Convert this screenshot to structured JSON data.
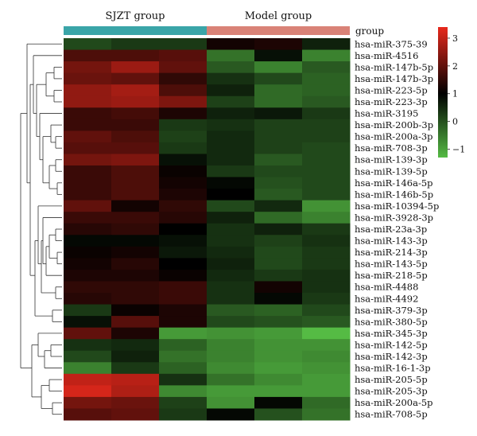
{
  "chart_data": {
    "type": "heatmap",
    "title": "",
    "column_groups": [
      {
        "name": "SJZT group",
        "color": "#3aa5a8",
        "columns": 3
      },
      {
        "name": "Model group",
        "color": "#d98277",
        "columns": 3
      }
    ],
    "group_label": "group",
    "rows": [
      "hsa-miR-375-39",
      "hsa-miR-4516",
      "hsa-miR-147b-5p",
      "hsa-miR-147b-3p",
      "hsa-miR-223-5p",
      "hsa-miR-223-3p",
      "hsa-miR-3195",
      "hsa-miR-200b-3p",
      "hsa-miR-200a-3p",
      "hsa-miR-708-3p",
      "hsa-miR-139-3p",
      "hsa-miR-139-5p",
      "hsa-miR-146a-5p",
      "hsa-miR-146b-5p",
      "hsa-miR-10394-5p",
      "hsa-miR-3928-3p",
      "hsa-miR-23a-3p",
      "hsa-miR-143-3p",
      "hsa-miR-214-3p",
      "hsa-miR-143-5p",
      "hsa-miR-218-5p",
      "hsa-miR-4488",
      "hsa-miR-4492",
      "hsa-miR-379-3p",
      "hsa-miR-380-5p",
      "hsa-miR-345-3p",
      "hsa-miR-142-5p",
      "hsa-miR-142-3p",
      "hsa-miR-16-1-3p",
      "hsa-miR-205-5p",
      "hsa-miR-205-3p",
      "hsa-miR-200a-5p",
      "hsa-miR-708-5p"
    ],
    "values": [
      [
        0.1,
        0.3,
        0.3,
        1.2,
        1.3,
        0.6
      ],
      [
        1.8,
        1.8,
        1.9,
        -0.4,
        0.8,
        -0.6
      ],
      [
        2.2,
        2.6,
        2.0,
        -0.1,
        -0.6,
        -0.1
      ],
      [
        2.1,
        2.0,
        1.5,
        0.4,
        0.1,
        -0.2
      ],
      [
        2.5,
        2.7,
        1.8,
        0.6,
        -0.3,
        -0.2
      ],
      [
        2.5,
        2.6,
        2.3,
        0.2,
        -0.3,
        -0.1
      ],
      [
        1.6,
        1.7,
        1.3,
        0.6,
        0.7,
        0.3
      ],
      [
        1.6,
        1.6,
        0.3,
        0.4,
        0.2,
        0.2
      ],
      [
        2.0,
        1.8,
        0.2,
        0.5,
        0.2,
        0.2
      ],
      [
        1.9,
        1.9,
        0.3,
        0.5,
        0.2,
        0.1
      ],
      [
        2.2,
        2.3,
        0.8,
        0.5,
        -0.1,
        0.1
      ],
      [
        1.6,
        1.8,
        1.1,
        0.3,
        0.1,
        0.1
      ],
      [
        1.6,
        1.8,
        1.2,
        0.9,
        0.0,
        0.1
      ],
      [
        1.6,
        1.8,
        1.3,
        1.0,
        -0.1,
        0.1
      ],
      [
        2.0,
        1.2,
        1.5,
        0.1,
        0.5,
        -0.8
      ],
      [
        1.6,
        1.6,
        1.4,
        0.6,
        -0.3,
        -0.6
      ],
      [
        1.4,
        1.5,
        1.0,
        0.4,
        0.6,
        0.3
      ],
      [
        0.9,
        0.9,
        0.8,
        0.4,
        0.2,
        0.4
      ],
      [
        1.1,
        1.2,
        0.7,
        0.5,
        0.1,
        0.3
      ],
      [
        1.2,
        1.4,
        1.0,
        0.6,
        0.1,
        0.3
      ],
      [
        1.3,
        1.3,
        1.1,
        0.5,
        0.3,
        0.4
      ],
      [
        1.5,
        1.5,
        1.6,
        0.4,
        1.2,
        0.4
      ],
      [
        1.4,
        1.5,
        1.6,
        0.4,
        0.9,
        0.3
      ],
      [
        0.3,
        1.1,
        1.3,
        -0.1,
        -0.2,
        0.1
      ],
      [
        0.8,
        1.9,
        1.3,
        0.1,
        0.0,
        -0.1
      ],
      [
        2.0,
        1.3,
        -0.9,
        -0.8,
        -0.9,
        -1.3
      ],
      [
        0.4,
        0.5,
        -0.2,
        -0.6,
        -0.8,
        -0.8
      ],
      [
        0.1,
        0.6,
        -0.4,
        -0.6,
        -0.8,
        -0.7
      ],
      [
        -0.6,
        0.3,
        -0.2,
        -0.7,
        -0.9,
        -0.8
      ],
      [
        3.0,
        2.9,
        0.4,
        -0.4,
        -0.7,
        -0.9
      ],
      [
        3.2,
        2.8,
        -0.7,
        -0.9,
        -0.9,
        -0.9
      ],
      [
        2.2,
        2.1,
        0.2,
        -0.8,
        0.9,
        -0.3
      ],
      [
        1.9,
        2.0,
        0.3,
        0.9,
        0.0,
        -0.4
      ]
    ],
    "color_scale": {
      "min": -1.3,
      "max": 3.4,
      "mid": 1,
      "low_color": "#55bb44",
      "mid_color": "#000000",
      "high_color": "#e8291c",
      "ticks": [
        3,
        2,
        1,
        0,
        -1
      ]
    },
    "dendrogram": "row",
    "legend_placement": "top-right"
  }
}
